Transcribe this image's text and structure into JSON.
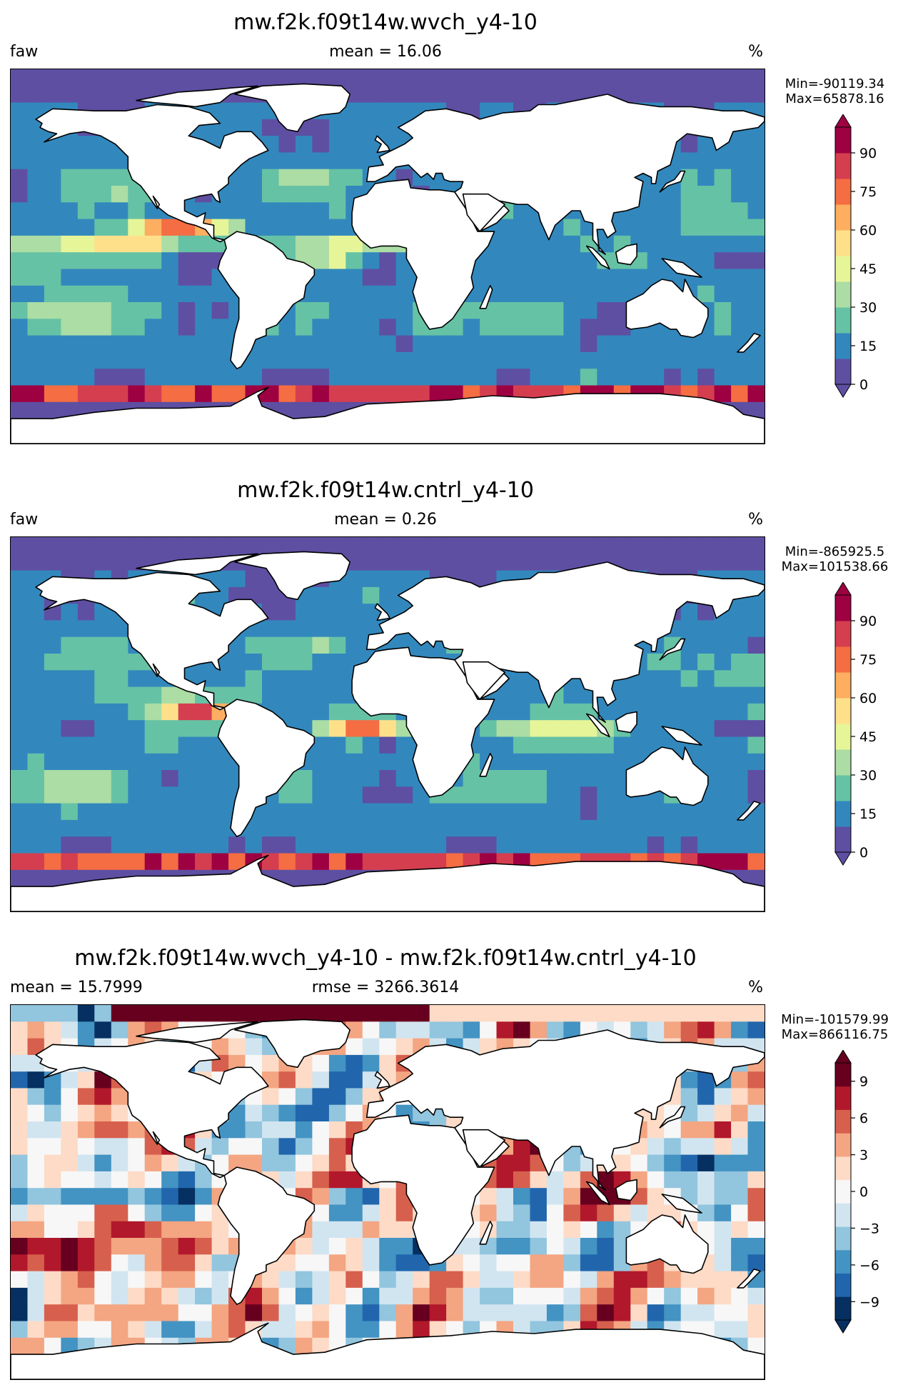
{
  "panels": [
    {
      "title": "mw.f2k.f09t14w.wvch_y4-10",
      "left_label": "faw",
      "center_label": "mean = 16.06",
      "units": "%",
      "min_text": "Min=-90119.34",
      "max_text": "Max=65878.16",
      "colormap": "Spectral_r",
      "colorbar_ticks": [
        "0",
        "15",
        "30",
        "45",
        "60",
        "75",
        "90"
      ],
      "colorbar_range": [
        0,
        100
      ],
      "colorbar_colors": [
        "#5e4fa2",
        "#3288bd",
        "#66c2a5",
        "#abdda4",
        "#e6f598",
        "#fee08b",
        "#fdae61",
        "#f46d43",
        "#d53e4f",
        "#9e0142"
      ]
    },
    {
      "title": "mw.f2k.f09t14w.cntrl_y4-10",
      "left_label": "faw",
      "center_label": "mean = 0.26",
      "units": "%",
      "min_text": "Min=-865925.5",
      "max_text": "Max=101538.66",
      "colormap": "Spectral_r",
      "colorbar_ticks": [
        "0",
        "15",
        "30",
        "45",
        "60",
        "75",
        "90"
      ],
      "colorbar_range": [
        0,
        100
      ],
      "colorbar_colors": [
        "#5e4fa2",
        "#3288bd",
        "#66c2a5",
        "#abdda4",
        "#e6f598",
        "#fee08b",
        "#fdae61",
        "#f46d43",
        "#d53e4f",
        "#9e0142"
      ]
    },
    {
      "title": "mw.f2k.f09t14w.wvch_y4-10 - mw.f2k.f09t14w.cntrl_y4-10",
      "left_label": "mean = 15.7999",
      "center_label": "rmse = 3266.3614",
      "units": "%",
      "min_text": "Min=-101579.99",
      "max_text": "Max=866116.75",
      "colormap": "RdBu_r",
      "colorbar_ticks": [
        "−9",
        "−6",
        "−3",
        "0",
        "3",
        "6",
        "9"
      ],
      "colorbar_range": [
        -10.5,
        10.5
      ],
      "colorbar_colors": [
        "#053061",
        "#2166ac",
        "#4393c3",
        "#92c5de",
        "#d1e5f0",
        "#f7f7f7",
        "#fddbc7",
        "#f4a582",
        "#d6604d",
        "#b2182b",
        "#67001f"
      ]
    }
  ]
}
